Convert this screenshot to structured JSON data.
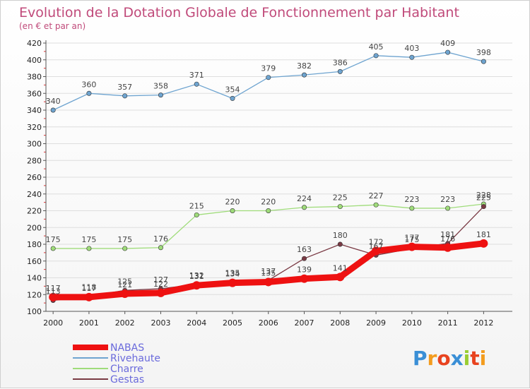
{
  "chart_data": {
    "type": "line",
    "title": "Evolution de la Dotation Globale de Fonctionnement par Habitant",
    "subtitle": "(en € et par an)",
    "categories": [
      "2000",
      "2001",
      "2002",
      "2003",
      "2004",
      "2005",
      "2006",
      "2007",
      "2008",
      "2009",
      "2010",
      "2011",
      "2012"
    ],
    "ylim": [
      100,
      420
    ],
    "yticks": [
      "100",
      "120",
      "140",
      "160",
      "180",
      "200",
      "220",
      "240",
      "260",
      "280",
      "300",
      "320",
      "340",
      "360",
      "380",
      "400",
      "420"
    ],
    "series": [
      {
        "name": "NABAS",
        "color": "#ee1111",
        "values": [
          117,
          117,
          121,
          122,
          131,
          134,
          135,
          139,
          141,
          172,
          177,
          176,
          181
        ]
      },
      {
        "name": "Rivehaute",
        "color": "#6ea4d0",
        "values": [
          340,
          360,
          357,
          358,
          371,
          354,
          379,
          382,
          386,
          405,
          403,
          409,
          398
        ]
      },
      {
        "name": "Charre",
        "color": "#9fdc7a",
        "values": [
          175,
          175,
          175,
          176,
          215,
          220,
          220,
          224,
          225,
          227,
          223,
          223,
          228
        ]
      },
      {
        "name": "Gestas",
        "color": "#7a3a44",
        "values": [
          113,
          118,
          125,
          127,
          132,
          135,
          137,
          163,
          180,
          167,
          175,
          181,
          225
        ]
      }
    ],
    "legend_position": "bottom-left"
  },
  "logo": {
    "letters": [
      "P",
      "r",
      "o",
      "x",
      "i",
      "t",
      "i"
    ],
    "colors": [
      "#3a8fd6",
      "#f39c1e",
      "#e8431f",
      "#3a8fd6",
      "#9acd32",
      "#e8431f",
      "#f39c1e"
    ]
  }
}
